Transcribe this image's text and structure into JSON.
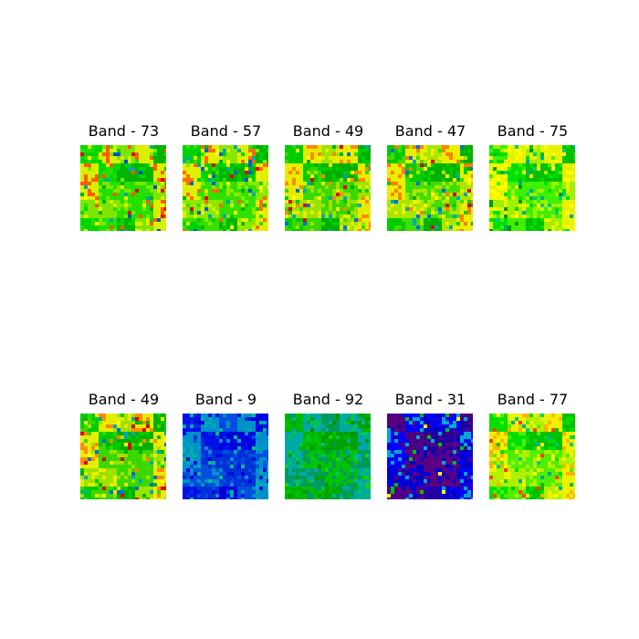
{
  "figure": {
    "panels": [
      {
        "title": "Band - 73",
        "palette": [
          "#00b400",
          "#00d700",
          "#22e000",
          "#7de600",
          "#d8ef00",
          "#ff5a00",
          "#e80000",
          "#ffff00",
          "#00a8a8",
          "#0050d0"
        ]
      },
      {
        "title": "Band - 57",
        "palette": [
          "#00b400",
          "#00d200",
          "#32e100",
          "#8be800",
          "#e0ef00",
          "#ff6a00",
          "#e40000",
          "#ffff00",
          "#00a8a8",
          "#0060d8"
        ]
      },
      {
        "title": "Band - 49",
        "palette": [
          "#00b000",
          "#00cc00",
          "#3ad800",
          "#9ce300",
          "#e6ed00",
          "#ff8a00",
          "#e00000",
          "#ffff00",
          "#00a8b8",
          "#0070d0"
        ]
      },
      {
        "title": "Band - 47",
        "palette": [
          "#00b000",
          "#00cc00",
          "#42dc00",
          "#a8e600",
          "#eaee00",
          "#ff8000",
          "#dc0000",
          "#ffff00",
          "#00a8b8",
          "#0070d8"
        ]
      },
      {
        "title": "Band - 75",
        "palette": [
          "#00c000",
          "#00e000",
          "#40f000",
          "#a0f000",
          "#e8f200",
          "#ffff00",
          "#00a8a0",
          "#00cc80",
          "#d0ff00",
          "#009a00"
        ]
      },
      {
        "title": "Band - 49",
        "palette": [
          "#00b000",
          "#00cc00",
          "#3ad800",
          "#9ce300",
          "#e6ed00",
          "#ff8a00",
          "#e00000",
          "#ffff00",
          "#00a8b8",
          "#0070d0"
        ]
      },
      {
        "title": "Band - 9",
        "palette": [
          "#0000dc",
          "#0010e8",
          "#0030d8",
          "#0050e0",
          "#0090c8",
          "#00a8b8",
          "#00b4a0",
          "#0000f0",
          "#2080d8",
          "#00c080"
        ]
      },
      {
        "title": "Band - 92",
        "palette": [
          "#00a000",
          "#00b400",
          "#00c400",
          "#009a60",
          "#00a8a8",
          "#00c84a",
          "#22d000",
          "#009000",
          "#00b890",
          "#00a020"
        ]
      },
      {
        "title": "Band - 31",
        "palette": [
          "#2000a0",
          "#4b0082",
          "#5a0080",
          "#0000c8",
          "#0000ff",
          "#00a8d0",
          "#00c000",
          "#ffff00",
          "#3000c0",
          "#600090"
        ]
      },
      {
        "title": "Band - 77",
        "palette": [
          "#00c000",
          "#00e000",
          "#50ef00",
          "#b0f000",
          "#eef200",
          "#ffb000",
          "#ff4000",
          "#ffff00",
          "#00a8a0",
          "#00cc80"
        ]
      }
    ]
  }
}
